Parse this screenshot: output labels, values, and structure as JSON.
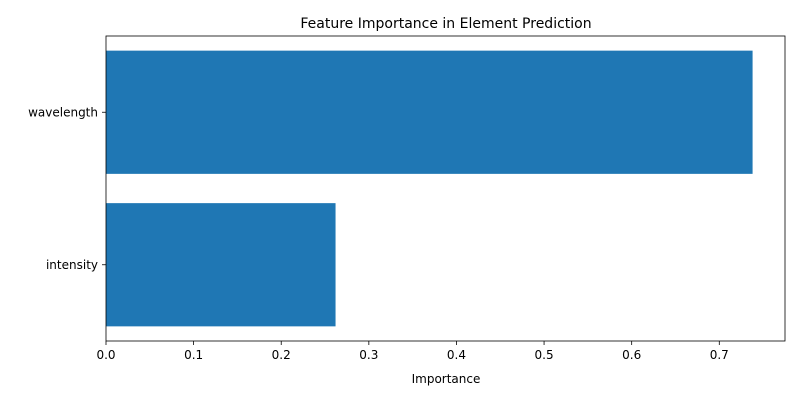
{
  "chart_data": {
    "type": "bar",
    "orientation": "horizontal",
    "title": "Feature Importance in Element Prediction",
    "xlabel": "Importance",
    "ylabel": "",
    "categories": [
      "wavelength",
      "intensity"
    ],
    "values": [
      0.738,
      0.262
    ],
    "xlim": [
      0,
      0.775
    ],
    "xticks": [
      0.0,
      0.1,
      0.2,
      0.3,
      0.4,
      0.5,
      0.6,
      0.7
    ],
    "xtick_labels": [
      "0.0",
      "0.1",
      "0.2",
      "0.3",
      "0.4",
      "0.5",
      "0.6",
      "0.7"
    ],
    "grid": false,
    "bar_color": "#1f77b4"
  }
}
